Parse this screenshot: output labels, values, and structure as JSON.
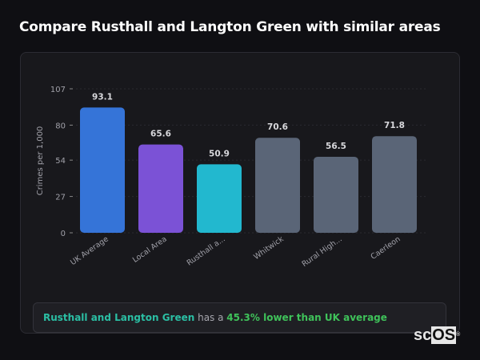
{
  "title": "Compare Rusthall and Langton Green with similar areas",
  "chart_data": {
    "type": "bar",
    "categories": [
      "UK Average",
      "Local Area",
      "Rusthall a...",
      "Whitwick",
      "Rural High...",
      "Caerleon"
    ],
    "values": [
      93.1,
      65.6,
      50.9,
      70.6,
      56.5,
      71.8
    ],
    "colors": [
      "#3574d8",
      "#7b52d6",
      "#22b8cf",
      "#5a6577",
      "#5a6577",
      "#5a6577"
    ],
    "ylabel": "Crimes per 1,000",
    "ylim": [
      0,
      107
    ],
    "yticks": [
      0,
      27,
      54,
      80,
      107
    ],
    "grid": true
  },
  "summary": {
    "area": "Rusthall and Langton Green",
    "connector": " has a ",
    "comparison": "45.3% lower than UK average"
  },
  "watermark": {
    "sc": "sc",
    "os": "OS",
    "reg": "®"
  },
  "colors": {
    "area": "#2bbfa4",
    "comparison": "#3fc25a"
  }
}
